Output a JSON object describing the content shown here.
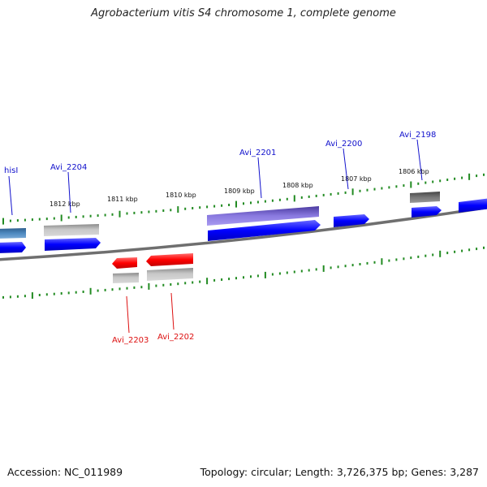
{
  "title": "Agrobacterium vitis S4 chromosome 1, complete genome",
  "footer": {
    "accession": "Accession: NC_011989",
    "summary": "Topology: circular; Length: 3,726,375 bp; Genes: 3,287"
  },
  "scale_labels": [
    "1812 kbp",
    "1811 kbp",
    "1810 kbp",
    "1809 kbp",
    "1808 kbp",
    "1807 kbp",
    "1806 kbp"
  ],
  "gene_labels": {
    "hisI": "hisI",
    "avi_2204": "Avi_2204",
    "avi_2201": "Avi_2201",
    "avi_2200": "Avi_2200",
    "avi_2198": "Avi_2198",
    "avi_2203": "Avi_2203",
    "avi_2202": "Avi_2202"
  },
  "colors": {
    "forward_cds": "#0000ff",
    "reverse_cds": "#ff0000",
    "gene_gray": "#a8a8a8",
    "dark_gray": "#666666",
    "purple": "#6a5acd",
    "steel_blue": "#4682b4",
    "backbone": "#808080",
    "tick_green": "#228b22"
  }
}
